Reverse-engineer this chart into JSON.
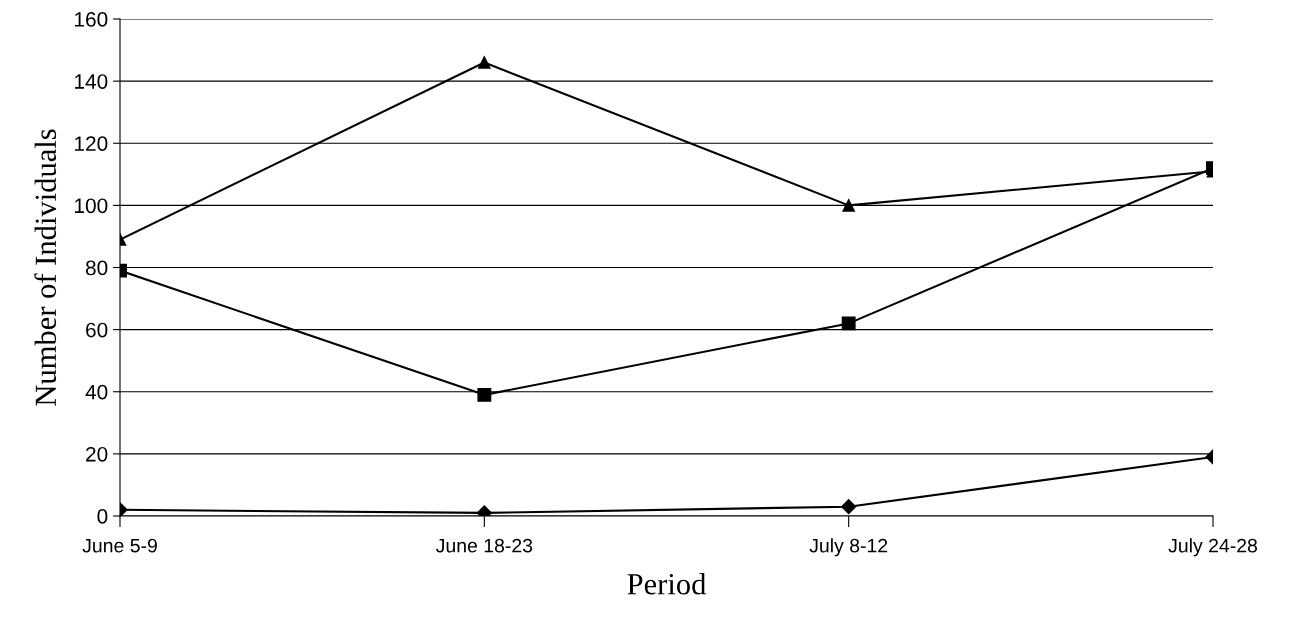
{
  "chart_data": {
    "type": "line",
    "xlabel": "Period",
    "ylabel": "Number of Individuals",
    "categories": [
      "June 5-9",
      "June 18-23",
      "July 8-12",
      "July 24-28"
    ],
    "series": [
      {
        "color": "#000000",
        "marker": "triangle",
        "values": [
          89,
          146,
          100,
          111
        ]
      },
      {
        "color": "#000000",
        "marker": "square",
        "values": [
          79,
          39,
          62,
          112
        ]
      },
      {
        "color": "#000000",
        "marker": "diamond",
        "values": [
          2,
          1,
          3,
          19
        ]
      }
    ],
    "ylim": [
      0,
      160
    ],
    "yticks": [
      0,
      20,
      40,
      60,
      80,
      100,
      120,
      140,
      160
    ],
    "grid": "y",
    "line_style": "solid"
  }
}
